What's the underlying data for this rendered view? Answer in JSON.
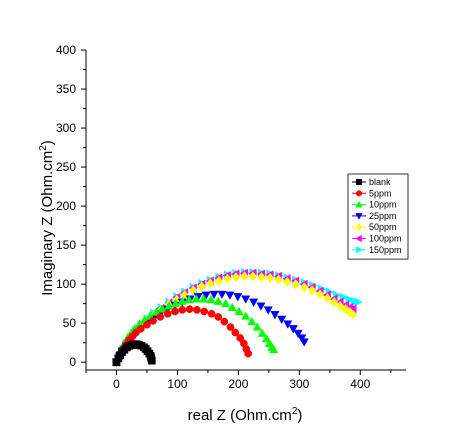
{
  "chart_data": {
    "type": "scatter",
    "xlabel": "real Z (Ohm.cm",
    "xlabel_unit_superscript": "2",
    "xlabel_close": ")",
    "ylabel": "Imaginary Z (Ohm.cm",
    "ylabel_unit_superscript": "2",
    "ylabel_close": ")",
    "xlim": [
      -50,
      475
    ],
    "ylim": [
      -10,
      400
    ],
    "x_ticks": [
      0,
      100,
      200,
      300,
      400
    ],
    "y_ticks": [
      0,
      50,
      100,
      150,
      200,
      250,
      300,
      350,
      400
    ],
    "legend_position": "right",
    "series": [
      {
        "name": "blank",
        "color": "#000000",
        "marker": "square",
        "x": [
          0,
          3,
          6,
          9,
          13,
          17,
          21,
          25,
          29,
          33,
          37,
          41,
          45,
          48,
          51,
          54,
          56,
          57,
          58
        ],
        "y": [
          0,
          5,
          9,
          13,
          16,
          19,
          21,
          22,
          23,
          23,
          22,
          21,
          19,
          17,
          14,
          11,
          8,
          5,
          2
        ]
      },
      {
        "name": "5ppm",
        "color": "#ff0000",
        "marker": "circle",
        "x": [
          0,
          5,
          10,
          15,
          20,
          26,
          32,
          40,
          50,
          60,
          72,
          84,
          96,
          108,
          120,
          132,
          144,
          156,
          167,
          177,
          187,
          195,
          203,
          209,
          213,
          216
        ],
        "y": [
          0,
          8,
          15,
          22,
          28,
          33,
          38,
          43,
          48,
          53,
          58,
          62,
          65,
          67,
          68,
          67,
          65,
          62,
          58,
          52,
          45,
          38,
          31,
          24,
          17,
          11
        ]
      },
      {
        "name": "10ppm",
        "color": "#00ff00",
        "marker": "triangle-up",
        "x": [
          0,
          4,
          8,
          13,
          18,
          24,
          30,
          38,
          46,
          55,
          65,
          75,
          86,
          97,
          108,
          119,
          131,
          143,
          155,
          167,
          179,
          190,
          201,
          212,
          222,
          231,
          239,
          246,
          251,
          255,
          258
        ],
        "y": [
          0,
          9,
          17,
          24,
          31,
          37,
          43,
          49,
          54,
          59,
          64,
          68,
          72,
          75,
          78,
          80,
          81,
          81,
          80,
          78,
          75,
          70,
          65,
          59,
          52,
          45,
          37,
          30,
          24,
          19,
          16
        ]
      },
      {
        "name": "25ppm",
        "color": "#0000ff",
        "marker": "triangle-down",
        "x": [
          0,
          5,
          10,
          16,
          23,
          31,
          40,
          50,
          61,
          72,
          84,
          96,
          108,
          121,
          134,
          147,
          160,
          173,
          186,
          199,
          212,
          225,
          237,
          249,
          260,
          271,
          281,
          290,
          298,
          304,
          308
        ],
        "y": [
          0,
          8,
          15,
          22,
          29,
          36,
          43,
          50,
          56,
          62,
          68,
          73,
          77,
          81,
          84,
          86,
          87,
          87,
          86,
          84,
          81,
          77,
          72,
          67,
          61,
          55,
          49,
          43,
          37,
          31,
          26
        ]
      },
      {
        "name": "50ppm",
        "color": "#ffff00",
        "marker": "diamond",
        "x": [
          0,
          5,
          10,
          16,
          23,
          31,
          40,
          50,
          61,
          73,
          86,
          99,
          112,
          126,
          140,
          154,
          168,
          182,
          196,
          210,
          224,
          238,
          252,
          266,
          280,
          294,
          308,
          321,
          334,
          346,
          357,
          367,
          376,
          383,
          388
        ],
        "y": [
          0,
          8,
          16,
          23,
          31,
          38,
          46,
          53,
          60,
          67,
          74,
          80,
          86,
          92,
          97,
          101,
          104,
          107,
          109,
          110,
          110,
          109,
          108,
          106,
          103,
          100,
          96,
          92,
          87,
          82,
          77,
          72,
          68,
          64,
          61
        ]
      },
      {
        "name": "100ppm",
        "color": "#ff00ff",
        "marker": "triangle-left",
        "x": [
          0,
          5,
          10,
          16,
          23,
          31,
          40,
          50,
          61,
          73,
          86,
          99,
          112,
          126,
          140,
          154,
          168,
          182,
          196,
          210,
          224,
          238,
          252,
          266,
          280,
          294,
          308,
          321,
          334,
          346,
          357,
          367,
          376,
          383,
          388
        ],
        "y": [
          0,
          8,
          16,
          24,
          32,
          40,
          48,
          55,
          62,
          69,
          76,
          83,
          89,
          95,
          100,
          104,
          108,
          111,
          113,
          114,
          114,
          113,
          112,
          110,
          107,
          104,
          100,
          96,
          91,
          86,
          81,
          77,
          73,
          70,
          68
        ]
      },
      {
        "name": "150ppm",
        "color": "#00ffff",
        "marker": "triangle-right",
        "x": [
          0,
          5,
          10,
          16,
          23,
          31,
          40,
          50,
          61,
          73,
          86,
          99,
          112,
          126,
          140,
          154,
          168,
          182,
          196,
          210,
          224,
          238,
          252,
          266,
          280,
          294,
          308,
          322,
          336,
          349,
          361,
          372,
          382,
          390,
          396
        ],
        "y": [
          0,
          8,
          16,
          24,
          32,
          40,
          48,
          56,
          63,
          70,
          77,
          84,
          90,
          96,
          101,
          105,
          109,
          112,
          114,
          115,
          115,
          114,
          113,
          111,
          108,
          105,
          102,
          98,
          94,
          90,
          86,
          83,
          80,
          78,
          77
        ]
      }
    ]
  }
}
